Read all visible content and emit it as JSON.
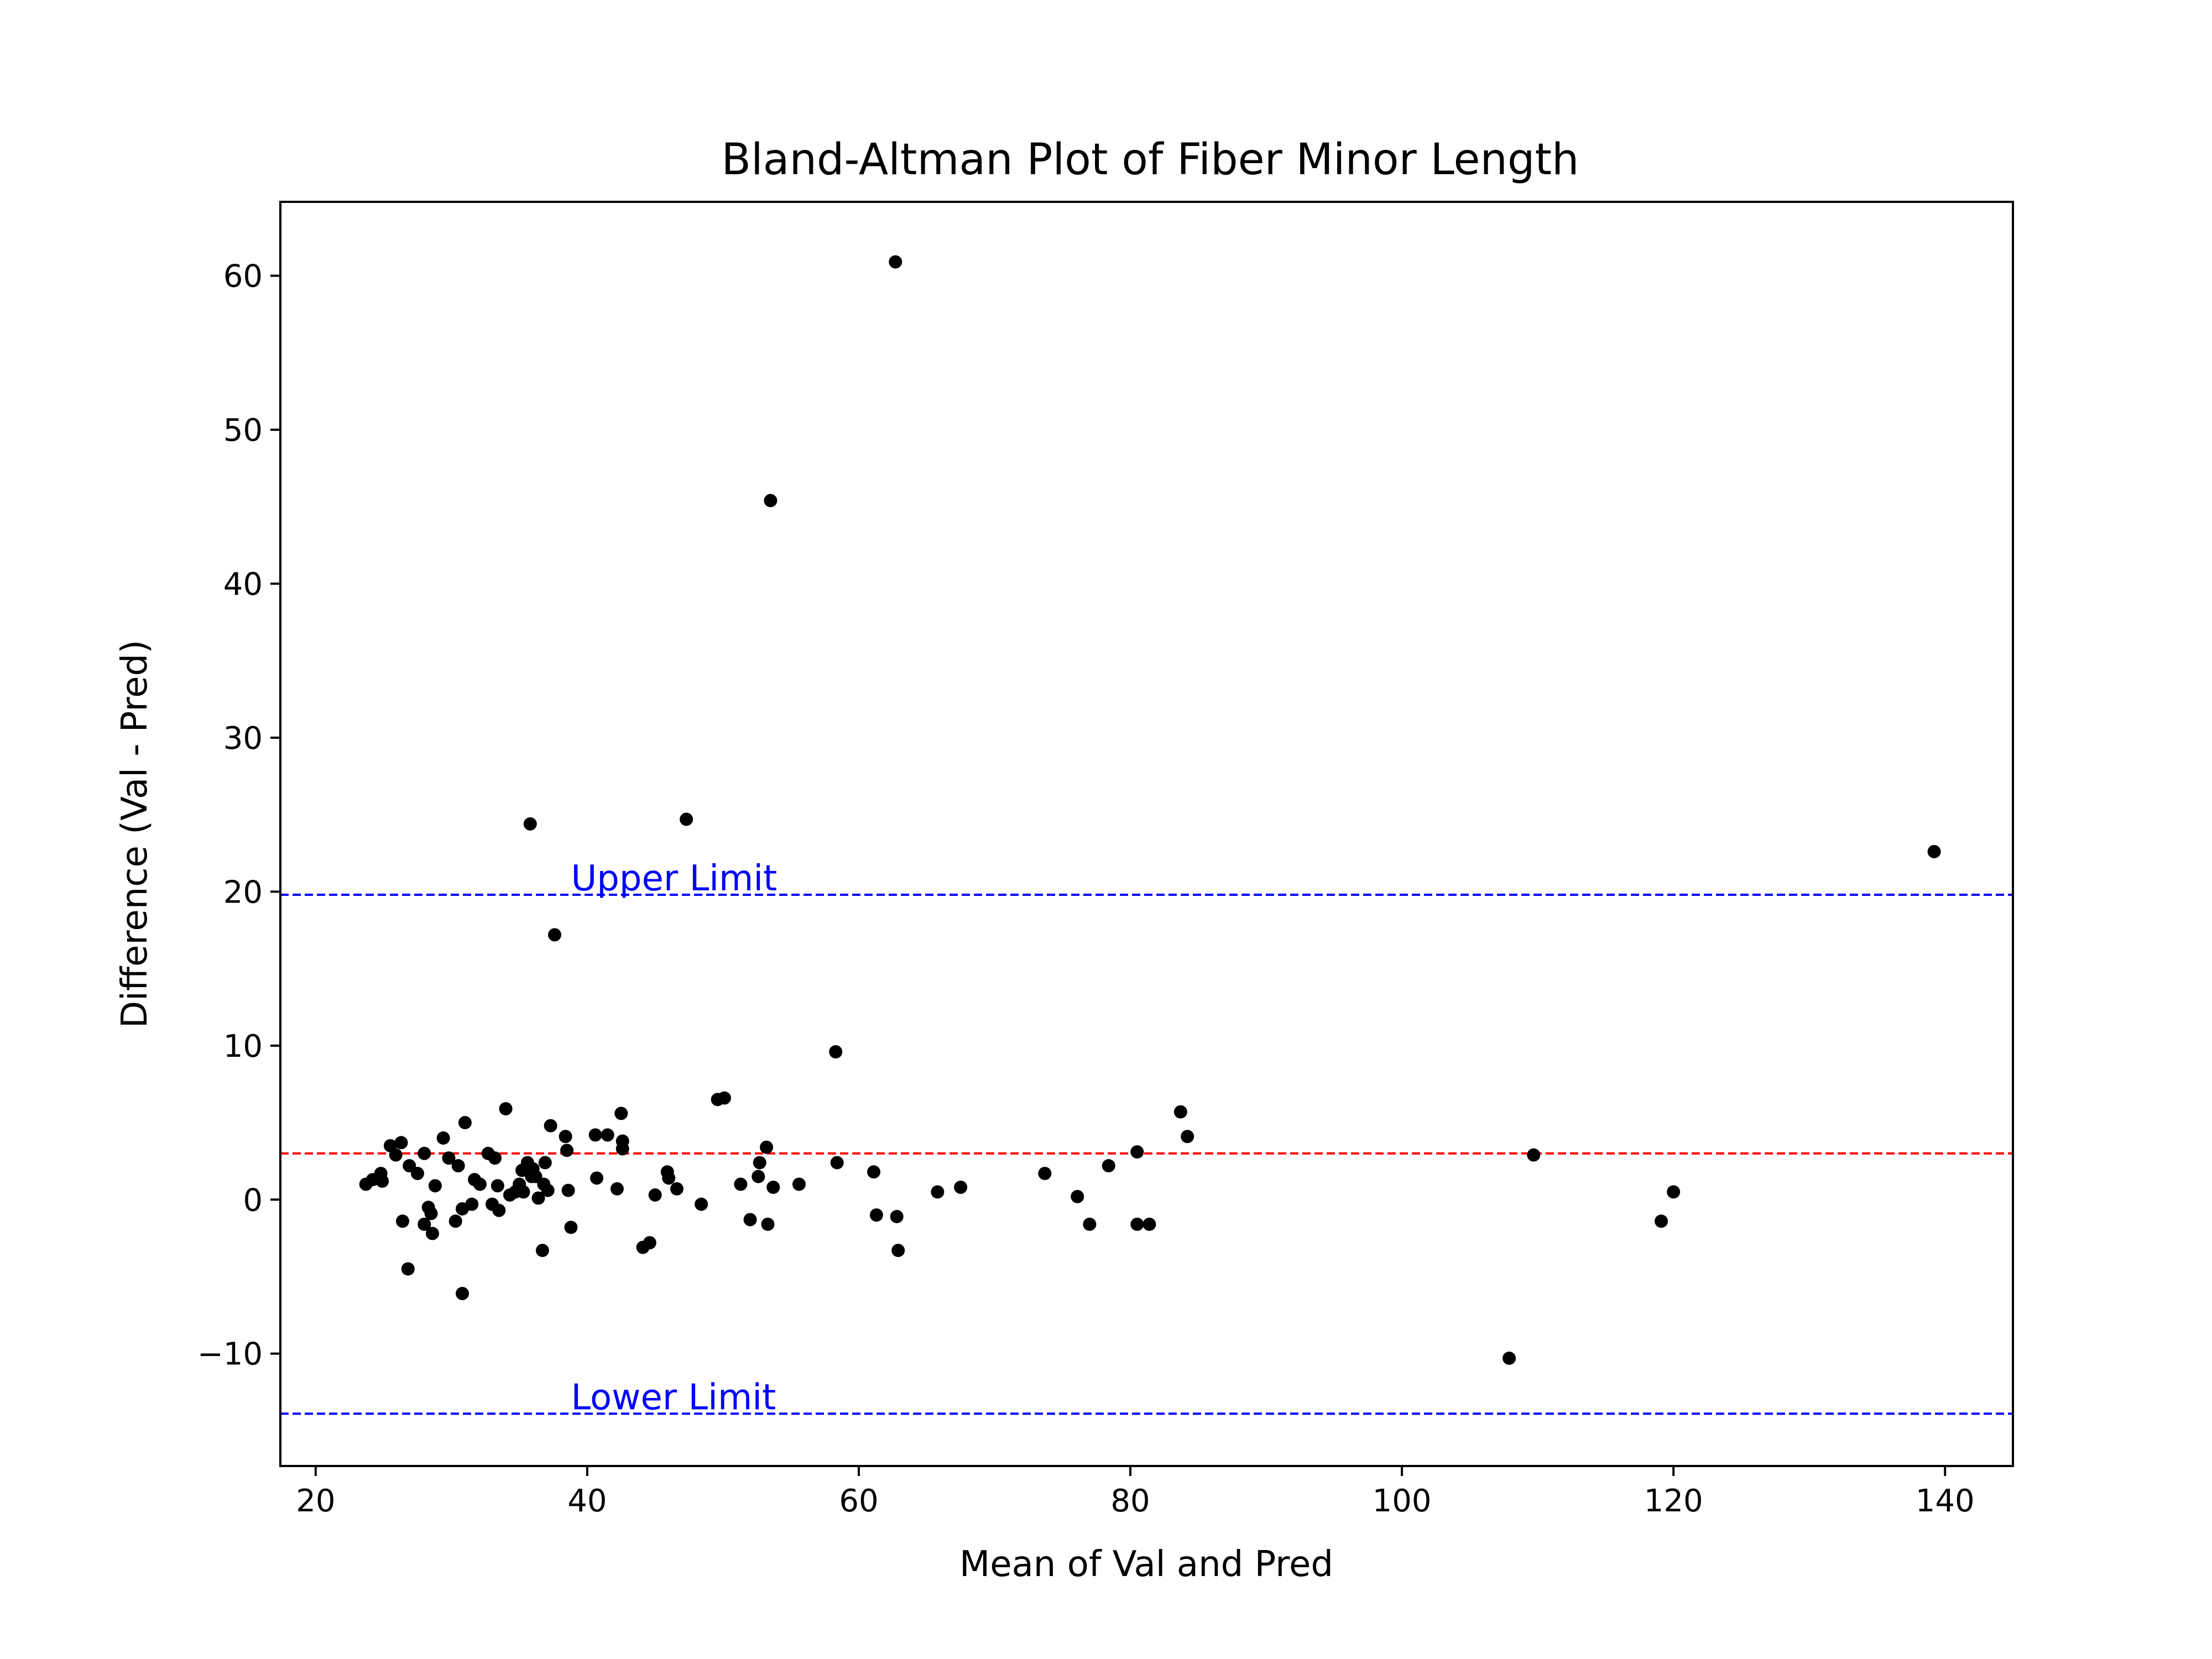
{
  "chart_data": {
    "type": "scatter",
    "title": "Bland-Altman Plot of Fiber Minor Length",
    "xlabel": "Mean of Val and Pred",
    "ylabel": "Difference (Val - Pred)",
    "xlim": [
      17.4,
      145.0
    ],
    "ylim": [
      -17.3,
      64.8
    ],
    "xticks": [
      20,
      40,
      60,
      80,
      100,
      120,
      140
    ],
    "xtick_labels": [
      "20",
      "40",
      "60",
      "80",
      "100",
      "120",
      "140"
    ],
    "yticks": [
      -10,
      0,
      10,
      20,
      30,
      40,
      50,
      60
    ],
    "ytick_labels": [
      "−10",
      "0",
      "10",
      "20",
      "30",
      "40",
      "50",
      "60"
    ],
    "grid": false,
    "marker_color": "#000000",
    "mean_line": {
      "value": 3.0,
      "color": "#ff0000"
    },
    "upper_limit": {
      "value": 19.8,
      "label": "Upper Limit",
      "label_x": 38.8,
      "color": "#0000ff"
    },
    "lower_limit": {
      "value": -13.9,
      "label": "Lower Limit",
      "label_x": 38.8,
      "color": "#0000ff"
    },
    "points": [
      {
        "x": 23.7,
        "y": 1.0
      },
      {
        "x": 24.2,
        "y": 1.3
      },
      {
        "x": 24.8,
        "y": 1.7
      },
      {
        "x": 24.9,
        "y": 1.2
      },
      {
        "x": 25.5,
        "y": 3.5
      },
      {
        "x": 25.9,
        "y": 2.9
      },
      {
        "x": 26.3,
        "y": 3.7
      },
      {
        "x": 26.4,
        "y": -1.4
      },
      {
        "x": 26.9,
        "y": 2.2
      },
      {
        "x": 26.8,
        "y": -4.5
      },
      {
        "x": 27.5,
        "y": 1.7
      },
      {
        "x": 28.0,
        "y": 3.0
      },
      {
        "x": 28.0,
        "y": -1.6
      },
      {
        "x": 28.3,
        "y": -0.5
      },
      {
        "x": 28.5,
        "y": -0.9
      },
      {
        "x": 28.6,
        "y": -2.2
      },
      {
        "x": 28.8,
        "y": 0.9
      },
      {
        "x": 29.4,
        "y": 4.0
      },
      {
        "x": 29.8,
        "y": 2.7
      },
      {
        "x": 30.3,
        "y": -1.4
      },
      {
        "x": 30.5,
        "y": 2.2
      },
      {
        "x": 30.8,
        "y": -0.6
      },
      {
        "x": 30.8,
        "y": -6.1
      },
      {
        "x": 31.0,
        "y": 5.0
      },
      {
        "x": 31.5,
        "y": -0.3
      },
      {
        "x": 31.7,
        "y": 1.3
      },
      {
        "x": 32.1,
        "y": 1.0
      },
      {
        "x": 32.7,
        "y": 3.0
      },
      {
        "x": 33.0,
        "y": -0.3
      },
      {
        "x": 33.2,
        "y": 2.7
      },
      {
        "x": 33.4,
        "y": 0.9
      },
      {
        "x": 33.5,
        "y": -0.7
      },
      {
        "x": 34.0,
        "y": 5.9
      },
      {
        "x": 34.3,
        "y": 0.3
      },
      {
        "x": 34.7,
        "y": 0.5
      },
      {
        "x": 35.0,
        "y": 1.0
      },
      {
        "x": 35.2,
        "y": 1.9
      },
      {
        "x": 35.3,
        "y": 0.5
      },
      {
        "x": 35.6,
        "y": 2.4
      },
      {
        "x": 35.8,
        "y": 24.4
      },
      {
        "x": 35.9,
        "y": 1.5
      },
      {
        "x": 36.0,
        "y": 2.0
      },
      {
        "x": 36.2,
        "y": 1.5
      },
      {
        "x": 36.4,
        "y": 0.1
      },
      {
        "x": 36.7,
        "y": -3.3
      },
      {
        "x": 36.8,
        "y": 1.0
      },
      {
        "x": 36.9,
        "y": 2.4
      },
      {
        "x": 37.1,
        "y": 0.6
      },
      {
        "x": 37.3,
        "y": 4.8
      },
      {
        "x": 37.6,
        "y": 17.2
      },
      {
        "x": 38.4,
        "y": 4.1
      },
      {
        "x": 38.5,
        "y": 3.2
      },
      {
        "x": 38.6,
        "y": 0.6
      },
      {
        "x": 38.8,
        "y": -1.8
      },
      {
        "x": 40.6,
        "y": 4.2
      },
      {
        "x": 40.7,
        "y": 1.4
      },
      {
        "x": 41.5,
        "y": 4.2
      },
      {
        "x": 42.2,
        "y": 0.7
      },
      {
        "x": 42.5,
        "y": 5.6
      },
      {
        "x": 42.6,
        "y": 3.8
      },
      {
        "x": 42.6,
        "y": 3.3
      },
      {
        "x": 44.1,
        "y": -3.1
      },
      {
        "x": 44.6,
        "y": -2.8
      },
      {
        "x": 45.0,
        "y": 0.3
      },
      {
        "x": 45.9,
        "y": 1.8
      },
      {
        "x": 46.0,
        "y": 1.4
      },
      {
        "x": 46.6,
        "y": 0.7
      },
      {
        "x": 47.3,
        "y": 24.7
      },
      {
        "x": 48.4,
        "y": -0.3
      },
      {
        "x": 49.6,
        "y": 6.5
      },
      {
        "x": 50.1,
        "y": 6.6
      },
      {
        "x": 51.3,
        "y": 1.0
      },
      {
        "x": 52.0,
        "y": -1.3
      },
      {
        "x": 52.6,
        "y": 1.5
      },
      {
        "x": 52.7,
        "y": 2.4
      },
      {
        "x": 53.2,
        "y": 3.4
      },
      {
        "x": 53.3,
        "y": -1.6
      },
      {
        "x": 53.5,
        "y": 45.4
      },
      {
        "x": 53.7,
        "y": 0.8
      },
      {
        "x": 55.6,
        "y": 1.0
      },
      {
        "x": 58.3,
        "y": 9.6
      },
      {
        "x": 58.4,
        "y": 2.4
      },
      {
        "x": 61.1,
        "y": 1.8
      },
      {
        "x": 61.3,
        "y": -1.0
      },
      {
        "x": 62.7,
        "y": 60.9
      },
      {
        "x": 62.8,
        "y": -1.1
      },
      {
        "x": 62.9,
        "y": -3.3
      },
      {
        "x": 65.8,
        "y": 0.5
      },
      {
        "x": 67.5,
        "y": 0.8
      },
      {
        "x": 73.7,
        "y": 1.7
      },
      {
        "x": 76.1,
        "y": 0.2
      },
      {
        "x": 77.0,
        "y": -1.6
      },
      {
        "x": 78.4,
        "y": 2.2
      },
      {
        "x": 80.5,
        "y": 3.1
      },
      {
        "x": 80.5,
        "y": -1.6
      },
      {
        "x": 81.4,
        "y": -1.6
      },
      {
        "x": 83.7,
        "y": 5.7
      },
      {
        "x": 84.2,
        "y": 4.1
      },
      {
        "x": 107.9,
        "y": -10.3
      },
      {
        "x": 109.7,
        "y": 2.9
      },
      {
        "x": 119.1,
        "y": -1.4
      },
      {
        "x": 120.0,
        "y": 0.5
      },
      {
        "x": 139.2,
        "y": 22.6
      }
    ]
  }
}
